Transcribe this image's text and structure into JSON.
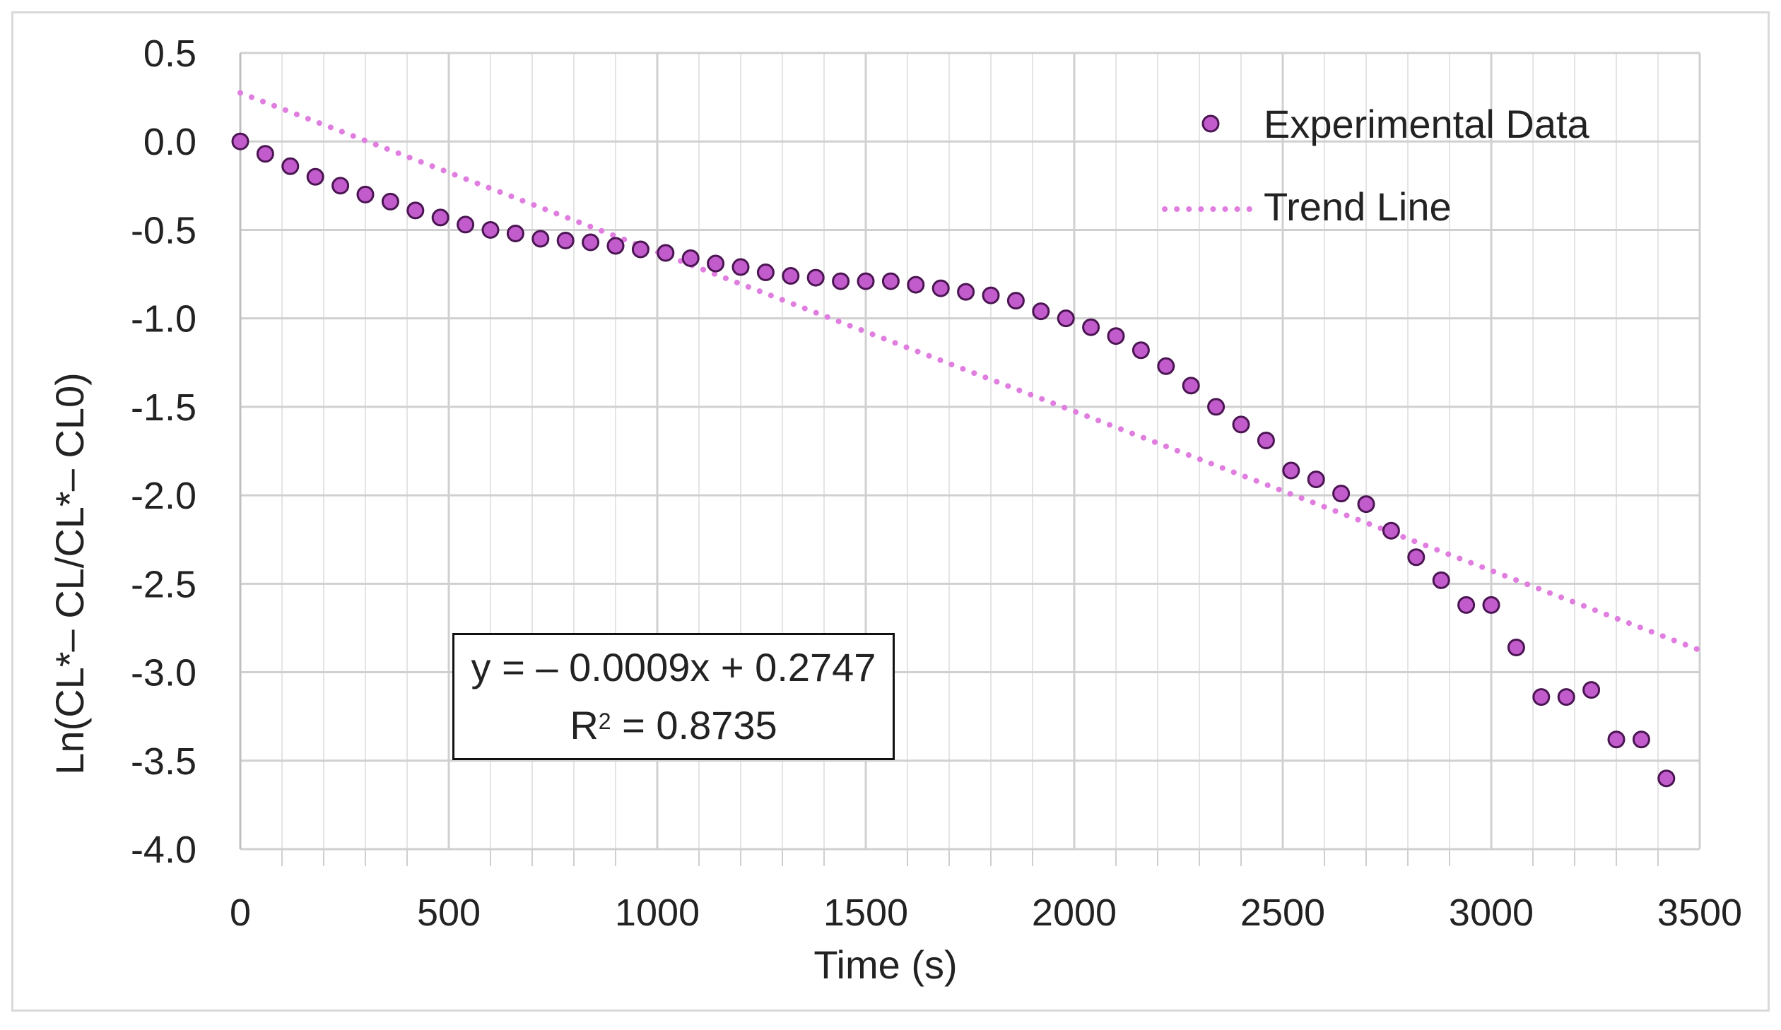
{
  "chart_data": {
    "type": "scatter",
    "title": "",
    "xlabel": "Time (s)",
    "ylabel": "Ln(CL*– CL/CL*– CL0)",
    "xlim": [
      0,
      3500
    ],
    "ylim": [
      -4.0,
      0.5
    ],
    "x_ticks": [
      0,
      500,
      1000,
      1500,
      2000,
      2500,
      3000,
      3500
    ],
    "x_tick_labels": [
      "0",
      "500",
      "1000",
      "1500",
      "2000",
      "2500",
      "3000",
      "3500"
    ],
    "y_ticks": [
      0.5,
      0.0,
      -0.5,
      -1.0,
      -1.5,
      -2.0,
      -2.5,
      -3.0,
      -3.5,
      -4.0
    ],
    "y_tick_labels": [
      "0.5",
      "0.0",
      "-0.5",
      "-1.0",
      "-1.5",
      "-2.0",
      "-2.5",
      "-3.0",
      "-3.5",
      "-4.0"
    ],
    "x_minor_step": 100,
    "grid": true,
    "legend_position": "top-right",
    "series": [
      {
        "name": "Experimental Data",
        "kind": "markers",
        "color": "#c25ccc",
        "edge_color": "#4a1552",
        "x": [
          0,
          60,
          120,
          180,
          240,
          300,
          360,
          420,
          480,
          540,
          600,
          660,
          720,
          780,
          840,
          900,
          960,
          1020,
          1080,
          1140,
          1200,
          1260,
          1320,
          1380,
          1440,
          1500,
          1560,
          1620,
          1680,
          1740,
          1800,
          1860,
          1920,
          1980,
          2040,
          2100,
          2160,
          2220,
          2280,
          2340,
          2400,
          2460,
          2520,
          2580,
          2640,
          2700,
          2760,
          2820,
          2880,
          2940,
          3000,
          3060,
          3120,
          3180,
          3240,
          3300,
          3360,
          3420
        ],
        "y": [
          0.0,
          -0.07,
          -0.14,
          -0.2,
          -0.25,
          -0.3,
          -0.34,
          -0.39,
          -0.43,
          -0.47,
          -0.5,
          -0.52,
          -0.55,
          -0.56,
          -0.57,
          -0.59,
          -0.61,
          -0.63,
          -0.66,
          -0.69,
          -0.71,
          -0.74,
          -0.76,
          -0.77,
          -0.79,
          -0.79,
          -0.79,
          -0.81,
          -0.83,
          -0.85,
          -0.87,
          -0.9,
          -0.96,
          -1.0,
          -1.05,
          -1.1,
          -1.18,
          -1.27,
          -1.38,
          -1.5,
          -1.6,
          -1.69,
          -1.86,
          -1.91,
          -1.99,
          -2.05,
          -2.2,
          -2.35,
          -2.48,
          -2.62,
          -2.62,
          -2.86,
          -3.14,
          -3.14,
          -3.1,
          -3.38,
          -3.38,
          -3.6
        ]
      },
      {
        "name": "Trend Line",
        "kind": "dotted-line",
        "color": "#e07ee0",
        "slope": -0.0009,
        "intercept": 0.2747,
        "x_range": [
          0,
          3500
        ]
      }
    ],
    "annotation": {
      "equation": "y = – 0.0009x + 0.2747",
      "r2_prefix": "R",
      "r2_sup": "2",
      "r2_value": " = 0.8735"
    }
  }
}
